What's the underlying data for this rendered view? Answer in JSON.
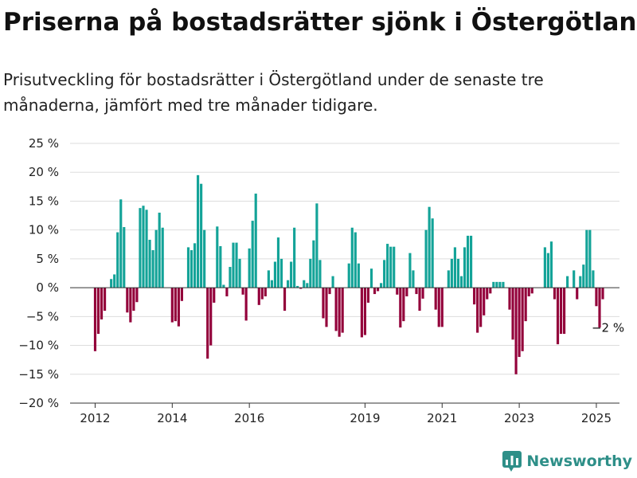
{
  "header": {
    "title": "Priserna på bostadsrätter sjönk i Östergötland",
    "subtitle": "Prisutveckling för bostadsrätter i Östergötland under de senaste tre månaderna, jämfört med tre månader tidigare."
  },
  "brand": {
    "name": "Newsworthy"
  },
  "chart_data": {
    "type": "bar",
    "title": "Priserna på bostadsrätter sjönk i Östergötland",
    "subtitle": "Prisutveckling för bostadsrätter i Östergötland under de senaste tre månaderna, jämfört med tre månader tidigare.",
    "xlabel": "",
    "ylabel": "",
    "x_ticks": [
      2012,
      2014,
      2016,
      2019,
      2021,
      2023,
      2025
    ],
    "y_ticks": [
      -20,
      -15,
      -10,
      -5,
      0,
      5,
      10,
      15,
      20,
      25
    ],
    "y_tick_labels": [
      "−20 %",
      "−15 %",
      "−10 %",
      "−5 %",
      "0 %",
      "5 %",
      "10 %",
      "15 %",
      "20 %",
      "25 %"
    ],
    "ylim": [
      -20,
      25
    ],
    "xlim": [
      2011.35,
      2025.6
    ],
    "grid": true,
    "unit": "%",
    "colors": {
      "positive": "#13a398",
      "negative": "#93003a"
    },
    "annotation": {
      "text": "−2 %",
      "x": 2025.0,
      "y": -2
    },
    "series": [
      {
        "start_year": 2012,
        "start_month": 1,
        "frequency": "monthly",
        "values": [
          -11,
          -8,
          -5.5,
          -4,
          0,
          1.5,
          2.3,
          9.6,
          15.3,
          10.5,
          -4.3,
          -6,
          -4,
          -2.5,
          13.8,
          14.2,
          13.5,
          8.3,
          6.5,
          10,
          13,
          10.4,
          0,
          0,
          -6,
          -5.8,
          -6.7,
          -2.3,
          0,
          7,
          6.5,
          7.7,
          19.5,
          18,
          10,
          -12.3,
          -10,
          -2.6,
          10.6,
          7.2,
          0.5,
          -1.5,
          3.6,
          7.8,
          7.8,
          5,
          -1.2,
          -5.7,
          6.8,
          11.6,
          16.3,
          -3,
          -2,
          -1.5,
          3,
          1.3,
          4.5,
          8.7,
          5,
          -4,
          1.3,
          4.5,
          10.4,
          0.3,
          -0.2,
          1.3,
          0.8,
          5,
          8.2,
          14.6,
          4.8,
          -5.3,
          -6.8,
          -1.1,
          2,
          -7.5,
          -8.5,
          -7.8,
          0,
          4.2,
          10.4,
          9.6,
          4.2,
          -8.6,
          -8.2,
          -2.6,
          3.3,
          -1.1,
          -0.6,
          0.8,
          4.8,
          7.6,
          7.1,
          7.1,
          -1.2,
          -6.9,
          -5.8,
          -1.5,
          6,
          3,
          -1.1,
          -4,
          -1.9,
          10,
          14,
          12,
          -3.8,
          -6.8,
          -6.8,
          0,
          3,
          5,
          7,
          5,
          2,
          7,
          9,
          9,
          -2.9,
          -7.8,
          -6.8,
          -4.8,
          -2,
          -1,
          1,
          1,
          1,
          1,
          0,
          -3.8,
          -9,
          -15,
          -12,
          -11,
          -5.8,
          -1.5,
          -1,
          0,
          0,
          0,
          7,
          6,
          8,
          -2,
          -9.8,
          -8,
          -8,
          2,
          0,
          3,
          -2,
          2,
          4,
          10,
          10,
          3,
          -3.2,
          -6.9,
          -2
        ]
      }
    ]
  }
}
